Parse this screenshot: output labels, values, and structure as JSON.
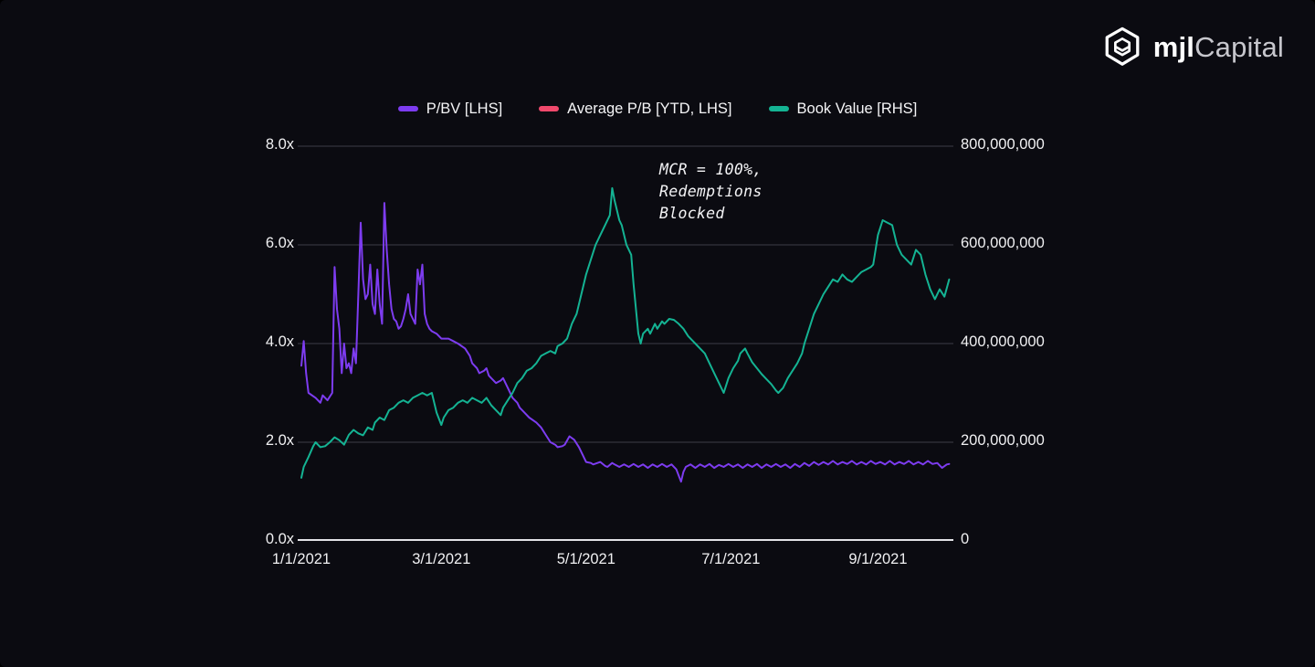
{
  "logo": {
    "brand_bold": "mjl",
    "brand_light": "Capital"
  },
  "chart_data": {
    "type": "line",
    "legend_position": "top",
    "grid": true,
    "grid_color": "#3e3e47",
    "axis_line_color": "#e2e2e6",
    "background_color": "#0b0b11",
    "x_axis": {
      "unit": "date",
      "tick_labels": [
        "1/1/2021",
        "3/1/2021",
        "5/1/2021",
        "7/1/2021",
        "9/1/2021"
      ],
      "tick_days": [
        0,
        59,
        120,
        181,
        243
      ],
      "domain_days": [
        0,
        274
      ]
    },
    "left_axis": {
      "tick_labels": [
        "8.0x",
        "6.0x",
        "4.0x",
        "2.0x",
        "0.0x"
      ],
      "range": [
        0,
        8
      ],
      "unit": "price-to-book multiple"
    },
    "right_axis": {
      "tick_labels": [
        "800,000,000",
        "600,000,000",
        "400,000,000",
        "200,000,000",
        "0"
      ],
      "range": [
        0,
        800000000
      ]
    },
    "annotation": {
      "text_lines": [
        "MCR = 100%,",
        "Redemptions",
        "Blocked"
      ]
    },
    "series": [
      {
        "name": "P/BV [LHS]",
        "axis": "left",
        "color": "#7d3cf0",
        "points": [
          [
            0,
            3.55
          ],
          [
            1,
            4.05
          ],
          [
            2,
            3.4
          ],
          [
            3,
            3.0
          ],
          [
            6,
            2.9
          ],
          [
            8,
            2.8
          ],
          [
            9,
            2.95
          ],
          [
            11,
            2.85
          ],
          [
            13,
            3.0
          ],
          [
            14,
            5.55
          ],
          [
            15,
            4.7
          ],
          [
            16,
            4.3
          ],
          [
            17,
            3.4
          ],
          [
            18,
            4.0
          ],
          [
            19,
            3.5
          ],
          [
            20,
            3.6
          ],
          [
            21,
            3.4
          ],
          [
            22,
            3.9
          ],
          [
            23,
            3.6
          ],
          [
            24,
            5.0
          ],
          [
            25,
            6.45
          ],
          [
            26,
            5.3
          ],
          [
            27,
            4.9
          ],
          [
            28,
            5.0
          ],
          [
            29,
            5.6
          ],
          [
            30,
            4.8
          ],
          [
            31,
            4.6
          ],
          [
            32,
            5.5
          ],
          [
            33,
            4.8
          ],
          [
            34,
            4.4
          ],
          [
            35,
            6.85
          ],
          [
            36,
            5.9
          ],
          [
            37,
            5.2
          ],
          [
            38,
            4.7
          ],
          [
            39,
            4.5
          ],
          [
            40,
            4.45
          ],
          [
            41,
            4.3
          ],
          [
            42,
            4.35
          ],
          [
            43,
            4.5
          ],
          [
            44,
            4.7
          ],
          [
            45,
            5.0
          ],
          [
            46,
            4.6
          ],
          [
            47,
            4.5
          ],
          [
            48,
            4.4
          ],
          [
            49,
            5.5
          ],
          [
            50,
            5.2
          ],
          [
            51,
            5.6
          ],
          [
            52,
            4.6
          ],
          [
            53,
            4.4
          ],
          [
            54,
            4.3
          ],
          [
            55,
            4.25
          ],
          [
            57,
            4.2
          ],
          [
            59,
            4.1
          ],
          [
            62,
            4.1
          ],
          [
            64,
            4.05
          ],
          [
            66,
            4.0
          ],
          [
            69,
            3.9
          ],
          [
            71,
            3.75
          ],
          [
            72,
            3.6
          ],
          [
            74,
            3.5
          ],
          [
            75,
            3.4
          ],
          [
            77,
            3.45
          ],
          [
            78,
            3.5
          ],
          [
            79,
            3.35
          ],
          [
            80,
            3.3
          ],
          [
            82,
            3.2
          ],
          [
            84,
            3.25
          ],
          [
            85,
            3.3
          ],
          [
            86,
            3.2
          ],
          [
            87,
            3.1
          ],
          [
            89,
            2.9
          ],
          [
            91,
            2.8
          ],
          [
            92,
            2.7
          ],
          [
            94,
            2.6
          ],
          [
            96,
            2.5
          ],
          [
            99,
            2.4
          ],
          [
            101,
            2.3
          ],
          [
            103,
            2.15
          ],
          [
            105,
            2.0
          ],
          [
            107,
            1.95
          ],
          [
            108,
            1.9
          ],
          [
            110,
            1.92
          ],
          [
            111,
            1.95
          ],
          [
            113,
            2.12
          ],
          [
            115,
            2.05
          ],
          [
            117,
            1.9
          ],
          [
            118,
            1.8
          ],
          [
            120,
            1.6
          ],
          [
            122,
            1.58
          ],
          [
            123,
            1.55
          ],
          [
            126,
            1.6
          ],
          [
            128,
            1.52
          ],
          [
            129,
            1.5
          ],
          [
            131,
            1.58
          ],
          [
            132,
            1.55
          ],
          [
            134,
            1.5
          ],
          [
            136,
            1.55
          ],
          [
            138,
            1.5
          ],
          [
            140,
            1.56
          ],
          [
            142,
            1.5
          ],
          [
            144,
            1.55
          ],
          [
            146,
            1.48
          ],
          [
            148,
            1.55
          ],
          [
            150,
            1.5
          ],
          [
            152,
            1.56
          ],
          [
            154,
            1.5
          ],
          [
            156,
            1.55
          ],
          [
            158,
            1.45
          ],
          [
            160,
            1.2
          ],
          [
            161,
            1.4
          ],
          [
            162,
            1.5
          ],
          [
            164,
            1.55
          ],
          [
            166,
            1.48
          ],
          [
            168,
            1.55
          ],
          [
            170,
            1.5
          ],
          [
            172,
            1.56
          ],
          [
            174,
            1.48
          ],
          [
            176,
            1.54
          ],
          [
            178,
            1.5
          ],
          [
            180,
            1.56
          ],
          [
            182,
            1.5
          ],
          [
            184,
            1.55
          ],
          [
            186,
            1.48
          ],
          [
            188,
            1.55
          ],
          [
            190,
            1.5
          ],
          [
            192,
            1.56
          ],
          [
            194,
            1.48
          ],
          [
            196,
            1.55
          ],
          [
            198,
            1.5
          ],
          [
            200,
            1.56
          ],
          [
            202,
            1.5
          ],
          [
            204,
            1.55
          ],
          [
            206,
            1.48
          ],
          [
            208,
            1.56
          ],
          [
            210,
            1.5
          ],
          [
            212,
            1.58
          ],
          [
            214,
            1.52
          ],
          [
            216,
            1.6
          ],
          [
            218,
            1.54
          ],
          [
            220,
            1.6
          ],
          [
            222,
            1.55
          ],
          [
            224,
            1.62
          ],
          [
            226,
            1.55
          ],
          [
            228,
            1.6
          ],
          [
            230,
            1.56
          ],
          [
            232,
            1.62
          ],
          [
            234,
            1.55
          ],
          [
            236,
            1.6
          ],
          [
            238,
            1.55
          ],
          [
            240,
            1.62
          ],
          [
            242,
            1.56
          ],
          [
            244,
            1.6
          ],
          [
            246,
            1.55
          ],
          [
            248,
            1.62
          ],
          [
            250,
            1.55
          ],
          [
            252,
            1.6
          ],
          [
            254,
            1.56
          ],
          [
            256,
            1.62
          ],
          [
            258,
            1.55
          ],
          [
            260,
            1.6
          ],
          [
            262,
            1.55
          ],
          [
            264,
            1.62
          ],
          [
            266,
            1.56
          ],
          [
            268,
            1.58
          ],
          [
            270,
            1.48
          ],
          [
            272,
            1.55
          ],
          [
            273,
            1.56
          ]
        ]
      },
      {
        "name": "Average P/B [YTD, LHS]",
        "axis": "left",
        "color": "#f0496c",
        "points": []
      },
      {
        "name": "Book Value [RHS]",
        "axis": "right",
        "color": "#14b393",
        "value_unit": "millions",
        "points": [
          [
            0,
            128
          ],
          [
            1,
            150
          ],
          [
            3,
            170
          ],
          [
            5,
            192
          ],
          [
            6,
            200
          ],
          [
            8,
            190
          ],
          [
            10,
            192
          ],
          [
            12,
            200
          ],
          [
            14,
            210
          ],
          [
            16,
            204
          ],
          [
            18,
            195
          ],
          [
            20,
            215
          ],
          [
            22,
            225
          ],
          [
            24,
            218
          ],
          [
            26,
            214
          ],
          [
            28,
            230
          ],
          [
            30,
            225
          ],
          [
            31,
            240
          ],
          [
            33,
            250
          ],
          [
            35,
            245
          ],
          [
            37,
            265
          ],
          [
            39,
            270
          ],
          [
            41,
            280
          ],
          [
            43,
            285
          ],
          [
            45,
            280
          ],
          [
            47,
            290
          ],
          [
            49,
            295
          ],
          [
            51,
            300
          ],
          [
            53,
            295
          ],
          [
            55,
            300
          ],
          [
            56,
            280
          ],
          [
            57,
            260
          ],
          [
            59,
            235
          ],
          [
            60,
            250
          ],
          [
            62,
            265
          ],
          [
            64,
            270
          ],
          [
            66,
            280
          ],
          [
            68,
            285
          ],
          [
            70,
            280
          ],
          [
            72,
            290
          ],
          [
            74,
            285
          ],
          [
            76,
            280
          ],
          [
            78,
            290
          ],
          [
            80,
            275
          ],
          [
            82,
            265
          ],
          [
            84,
            255
          ],
          [
            85,
            270
          ],
          [
            87,
            285
          ],
          [
            89,
            300
          ],
          [
            91,
            320
          ],
          [
            93,
            330
          ],
          [
            95,
            345
          ],
          [
            97,
            350
          ],
          [
            99,
            360
          ],
          [
            101,
            375
          ],
          [
            103,
            380
          ],
          [
            105,
            385
          ],
          [
            107,
            380
          ],
          [
            108,
            395
          ],
          [
            110,
            400
          ],
          [
            112,
            410
          ],
          [
            114,
            440
          ],
          [
            116,
            460
          ],
          [
            118,
            500
          ],
          [
            120,
            540
          ],
          [
            122,
            570
          ],
          [
            124,
            600
          ],
          [
            126,
            620
          ],
          [
            128,
            640
          ],
          [
            130,
            660
          ],
          [
            131,
            715
          ],
          [
            132,
            690
          ],
          [
            134,
            650
          ],
          [
            135,
            640
          ],
          [
            137,
            600
          ],
          [
            139,
            580
          ],
          [
            140,
            520
          ],
          [
            142,
            420
          ],
          [
            143,
            400
          ],
          [
            144,
            420
          ],
          [
            146,
            430
          ],
          [
            147,
            420
          ],
          [
            149,
            440
          ],
          [
            150,
            430
          ],
          [
            152,
            445
          ],
          [
            153,
            440
          ],
          [
            155,
            450
          ],
          [
            157,
            448
          ],
          [
            159,
            440
          ],
          [
            161,
            430
          ],
          [
            163,
            415
          ],
          [
            165,
            405
          ],
          [
            166,
            400
          ],
          [
            168,
            390
          ],
          [
            170,
            380
          ],
          [
            172,
            360
          ],
          [
            174,
            340
          ],
          [
            176,
            320
          ],
          [
            178,
            300
          ],
          [
            179,
            315
          ],
          [
            180,
            330
          ],
          [
            182,
            350
          ],
          [
            184,
            365
          ],
          [
            185,
            380
          ],
          [
            187,
            390
          ],
          [
            188,
            380
          ],
          [
            190,
            362
          ],
          [
            192,
            350
          ],
          [
            194,
            338
          ],
          [
            196,
            328
          ],
          [
            198,
            318
          ],
          [
            200,
            305
          ],
          [
            201,
            300
          ],
          [
            203,
            310
          ],
          [
            205,
            330
          ],
          [
            207,
            345
          ],
          [
            209,
            360
          ],
          [
            211,
            380
          ],
          [
            212,
            400
          ],
          [
            214,
            430
          ],
          [
            216,
            460
          ],
          [
            218,
            480
          ],
          [
            220,
            500
          ],
          [
            222,
            515
          ],
          [
            224,
            530
          ],
          [
            226,
            525
          ],
          [
            228,
            540
          ],
          [
            230,
            530
          ],
          [
            232,
            525
          ],
          [
            234,
            535
          ],
          [
            236,
            545
          ],
          [
            238,
            550
          ],
          [
            240,
            555
          ],
          [
            241,
            560
          ],
          [
            242,
            590
          ],
          [
            243,
            620
          ],
          [
            245,
            650
          ],
          [
            247,
            645
          ],
          [
            249,
            640
          ],
          [
            251,
            600
          ],
          [
            253,
            580
          ],
          [
            255,
            570
          ],
          [
            257,
            560
          ],
          [
            259,
            590
          ],
          [
            261,
            580
          ],
          [
            263,
            540
          ],
          [
            265,
            510
          ],
          [
            267,
            490
          ],
          [
            269,
            510
          ],
          [
            271,
            495
          ],
          [
            273,
            530
          ]
        ]
      }
    ]
  }
}
